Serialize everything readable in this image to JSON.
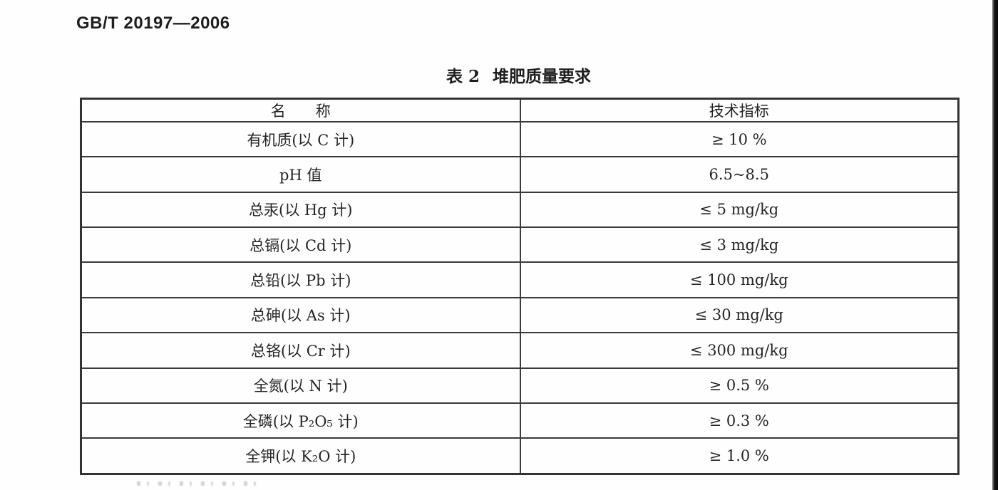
{
  "header": {
    "standard_code": "GB/T 20197—2006"
  },
  "table": {
    "caption_number": "表 2",
    "caption_text": "堆肥质量要求",
    "columns": [
      "名　　称",
      "技术指标"
    ],
    "rows": [
      {
        "name": "有机质(以 C 计)",
        "value": "≥ 10 %"
      },
      {
        "name": "pH 值",
        "value": "6.5~8.5"
      },
      {
        "name": "总汞(以 Hg 计)",
        "value": "≤ 5 mg/kg"
      },
      {
        "name": "总镉(以 Cd 计)",
        "value": "≤ 3 mg/kg"
      },
      {
        "name": "总铅(以 Pb 计)",
        "value": "≤ 100 mg/kg"
      },
      {
        "name": "总砷(以 As 计)",
        "value": "≤ 30 mg/kg"
      },
      {
        "name": "总铬(以 Cr 计)",
        "value": "≤ 300 mg/kg"
      },
      {
        "name": "全氮(以 N 计)",
        "value": "≥ 0.5 %"
      },
      {
        "name": "全磷(以 P₂O₅ 计)",
        "value": "≥ 0.3 %"
      },
      {
        "name": "全钾(以 K₂O 计)",
        "value": "≥ 1.0 %"
      }
    ]
  },
  "colors": {
    "ink": "#222222",
    "table_border": "#3a3a3a",
    "scan_edge": "#0a0a0a"
  }
}
